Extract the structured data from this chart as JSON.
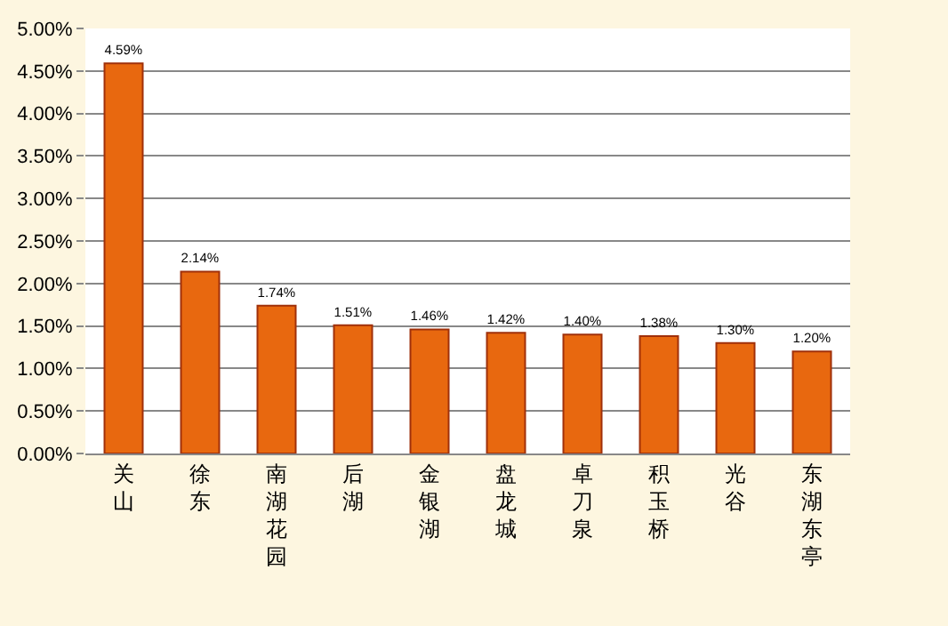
{
  "chart_data": {
    "type": "bar",
    "categories": [
      "关山",
      "徐东",
      "南湖花园",
      "后湖",
      "金银湖",
      "盘龙城",
      "卓刀泉",
      "积玉桥",
      "光谷",
      "东湖东亭"
    ],
    "values": [
      4.59,
      2.14,
      1.74,
      1.51,
      1.46,
      1.42,
      1.4,
      1.38,
      1.3,
      1.2
    ],
    "value_labels": [
      "4.59%",
      "2.14%",
      "1.74%",
      "1.51%",
      "1.46%",
      "1.42%",
      "1.40%",
      "1.38%",
      "1.30%",
      "1.20%"
    ],
    "color": "#e8680f",
    "ylim": [
      0,
      5
    ],
    "yticks": [
      {
        "value": 0,
        "label": "0.00%"
      },
      {
        "value": 0.5,
        "label": "0.50%"
      },
      {
        "value": 1,
        "label": "1.00%"
      },
      {
        "value": 1.5,
        "label": "1.50%"
      },
      {
        "value": 2,
        "label": "2.00%"
      },
      {
        "value": 2.5,
        "label": "2.50%"
      },
      {
        "value": 3,
        "label": "3.00%"
      },
      {
        "value": 3.5,
        "label": "3.50%"
      },
      {
        "value": 4,
        "label": "4.00%"
      },
      {
        "value": 4.5,
        "label": "4.50%"
      },
      {
        "value": 5,
        "label": "5.00%"
      }
    ],
    "grid": "y",
    "legend": false
  }
}
